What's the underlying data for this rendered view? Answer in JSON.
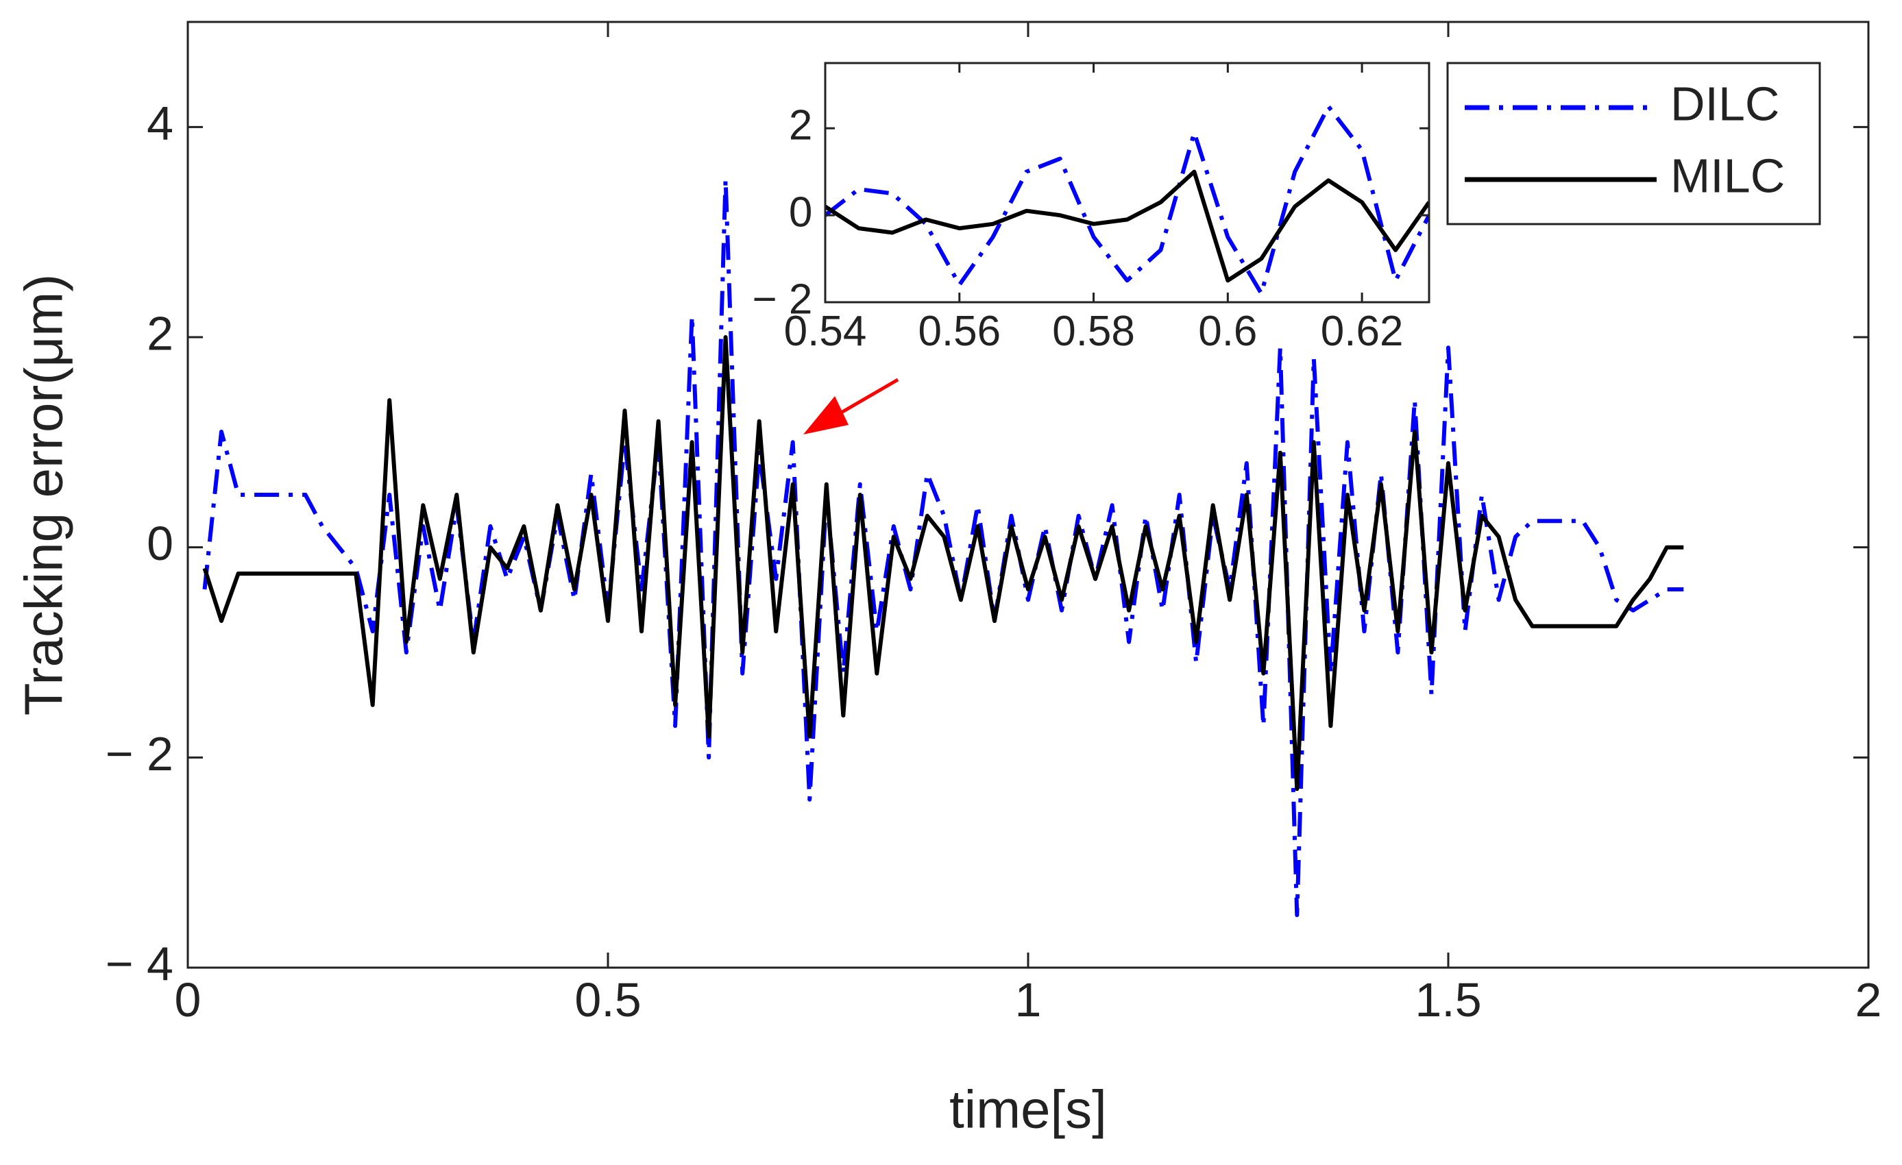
{
  "chart_data": [
    {
      "type": "line",
      "xlabel": "time[s]",
      "ylabel": "Tracking error(μm)",
      "x": [
        0.02,
        0.04,
        0.06,
        0.08,
        0.1,
        0.12,
        0.14,
        0.16,
        0.18,
        0.2,
        0.22,
        0.24,
        0.26,
        0.28,
        0.3,
        0.32,
        0.34,
        0.36,
        0.38,
        0.4,
        0.42,
        0.44,
        0.46,
        0.48,
        0.5,
        0.52,
        0.54,
        0.56,
        0.58,
        0.6,
        0.62,
        0.64,
        0.66,
        0.68,
        0.7,
        0.72,
        0.74,
        0.76,
        0.78,
        0.8,
        0.82,
        0.84,
        0.86,
        0.88,
        0.9,
        0.92,
        0.94,
        0.96,
        0.98,
        1.0,
        1.02,
        1.04,
        1.06,
        1.08,
        1.1,
        1.12,
        1.14,
        1.16,
        1.18,
        1.2,
        1.22,
        1.24,
        1.26,
        1.28,
        1.3,
        1.32,
        1.34,
        1.36,
        1.38,
        1.4,
        1.42,
        1.44,
        1.46,
        1.48,
        1.5,
        1.52,
        1.54,
        1.56,
        1.58,
        1.6,
        1.62,
        1.64,
        1.66,
        1.68,
        1.7,
        1.72,
        1.74,
        1.76,
        1.78
      ],
      "series": [
        {
          "name": "DILC",
          "color": "#0000ff",
          "dash": "dashdot",
          "values": [
            -0.4,
            1.1,
            0.5,
            0.5,
            0.5,
            0.5,
            0.5,
            0.2,
            0.0,
            -0.2,
            -0.8,
            0.5,
            -1.0,
            0.2,
            -0.6,
            0.4,
            -0.9,
            0.2,
            -0.3,
            0.1,
            -0.6,
            0.3,
            -0.5,
            0.7,
            -0.6,
            1.0,
            -0.4,
            1.0,
            -1.7,
            2.2,
            -2.0,
            3.5,
            -1.2,
            0.9,
            -0.3,
            1.0,
            -2.4,
            0.5,
            -1.2,
            0.6,
            -0.8,
            0.2,
            -0.4,
            0.7,
            0.3,
            -0.5,
            0.4,
            -0.7,
            0.3,
            -0.5,
            0.2,
            -0.6,
            0.3,
            -0.3,
            0.4,
            -0.9,
            0.3,
            -0.6,
            0.5,
            -1.1,
            0.3,
            -0.4,
            0.8,
            -1.7,
            1.9,
            -3.5,
            1.8,
            -1.2,
            1.0,
            -0.8,
            0.7,
            -1.0,
            1.4,
            -1.4,
            1.9,
            -0.8,
            0.5,
            -0.5,
            0.1,
            0.25,
            0.25,
            0.25,
            0.25,
            0.0,
            -0.5,
            -0.6,
            -0.5,
            -0.4,
            -0.4
          ]
        },
        {
          "name": "MILC",
          "color": "#000000",
          "dash": "solid",
          "values": [
            -0.2,
            -0.7,
            -0.25,
            -0.25,
            -0.25,
            -0.25,
            -0.25,
            -0.25,
            -0.25,
            -0.25,
            -1.5,
            1.4,
            -0.9,
            0.4,
            -0.3,
            0.5,
            -1.0,
            0.0,
            -0.2,
            0.2,
            -0.6,
            0.4,
            -0.4,
            0.5,
            -0.7,
            1.3,
            -0.8,
            1.2,
            -1.5,
            1.0,
            -1.8,
            2.0,
            -1.0,
            1.2,
            -0.8,
            0.6,
            -1.8,
            0.6,
            -1.6,
            0.5,
            -1.2,
            0.1,
            -0.3,
            0.3,
            0.1,
            -0.5,
            0.2,
            -0.7,
            0.2,
            -0.4,
            0.1,
            -0.5,
            0.2,
            -0.3,
            0.2,
            -0.6,
            0.2,
            -0.4,
            0.3,
            -0.9,
            0.4,
            -0.5,
            0.5,
            -1.2,
            0.9,
            -2.3,
            1.0,
            -1.7,
            0.5,
            -0.6,
            0.6,
            -0.8,
            1.1,
            -1.0,
            0.8,
            -0.6,
            0.3,
            0.1,
            -0.5,
            -0.75,
            -0.75,
            -0.75,
            -0.75,
            -0.75,
            -0.75,
            -0.5,
            -0.3,
            0.0,
            0.0
          ]
        }
      ],
      "xlim": [
        0,
        2
      ],
      "xticks": [
        0,
        0.5,
        1,
        1.5,
        2
      ],
      "ylim": [
        -4,
        5
      ],
      "yticks": [
        {
          "value": -4,
          "label": "− 4"
        },
        {
          "value": -2,
          "label": "− 2"
        },
        0,
        2,
        4
      ],
      "grid": false,
      "legend": "upper right"
    },
    {
      "type": "line",
      "x": [
        0.54,
        0.545,
        0.55,
        0.555,
        0.56,
        0.565,
        0.57,
        0.575,
        0.58,
        0.585,
        0.59,
        0.595,
        0.6,
        0.605,
        0.61,
        0.615,
        0.62,
        0.625,
        0.63
      ],
      "series": [
        {
          "name": "DILC",
          "color": "#0000ff",
          "dash": "dashdot",
          "values": [
            0,
            0.6,
            0.5,
            -0.2,
            -1.6,
            -0.5,
            1.0,
            1.3,
            -0.5,
            -1.5,
            -0.8,
            1.9,
            -0.5,
            -1.8,
            1.0,
            2.5,
            1.5,
            -1.5,
            0.0
          ]
        },
        {
          "name": "MILC",
          "color": "#000000",
          "dash": "solid",
          "values": [
            0.2,
            -0.3,
            -0.4,
            -0.1,
            -0.3,
            -0.2,
            0.1,
            0.0,
            -0.2,
            -0.1,
            0.3,
            1.0,
            -1.5,
            -1.0,
            0.2,
            0.8,
            0.3,
            -0.8,
            0.3
          ]
        }
      ],
      "xlim": [
        0.54,
        0.63
      ],
      "xticks": [
        0.54,
        0.56,
        0.58,
        0.6,
        0.62
      ],
      "ylim": [
        -2,
        3.5
      ],
      "yticks": [
        {
          "value": -2,
          "label": "− 2"
        },
        0,
        2
      ],
      "grid": false
    }
  ]
}
